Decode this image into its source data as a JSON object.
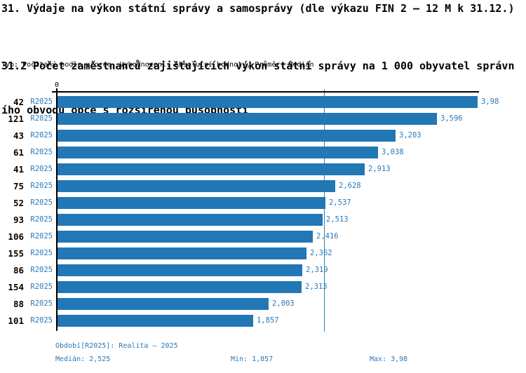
{
  "title": "31. Výdaje na výkon státní správy a samosprávy (dle výkazu FIN 2 – 12 M k 31.12.)",
  "subtitle_line1": "31.2 Počet zaměstnanců zajišťujících výkon státní správy na 1 000 obyvatel správn",
  "subtitle_line2": "ího obvodu obce s rozšířenou působností",
  "meta_line": "Typ: Počítaný podle vzorce, Vyhodnocení: Absolutní hodnoty, Průměr: Medián",
  "axis": {
    "zero_label": "0"
  },
  "colors": {
    "bar": "#2277b5",
    "accent_text": "#2878b8",
    "median_line": "#2b7fba",
    "axis": "#000000"
  },
  "chart_data": {
    "type": "bar",
    "orientation": "horizontal",
    "title": "31.2 Počet zaměstnanců zajišťujících výkon státní správy na 1 000 obyvatel správního obvodu obce s rozšířenou působností",
    "categories": [
      "42",
      "121",
      "43",
      "61",
      "41",
      "75",
      "52",
      "93",
      "106",
      "155",
      "86",
      "154",
      "88",
      "101"
    ],
    "series_label": "R2025",
    "values": [
      3.98,
      3.596,
      3.203,
      3.038,
      2.913,
      2.628,
      2.537,
      2.513,
      2.416,
      2.362,
      2.319,
      2.313,
      2.003,
      1.857
    ],
    "value_labels": [
      "3,98",
      "3,596",
      "3,203",
      "3,038",
      "2,913",
      "2,628",
      "2,537",
      "2,513",
      "2,416",
      "2,362",
      "2,319",
      "2,313",
      "2,003",
      "1,857"
    ],
    "xlim": [
      0,
      4.0
    ],
    "median": 2.525,
    "grid": "single median reference line",
    "legend": "none"
  },
  "footer": {
    "period": "Období[R2025]: Realita – 2025",
    "median": "Medián: 2,525",
    "min": "Min: 1,857",
    "max": "Max: 3,98"
  }
}
